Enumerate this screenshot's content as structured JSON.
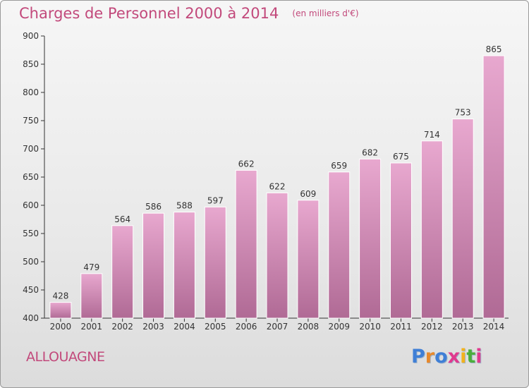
{
  "chart_data": {
    "type": "bar",
    "title": "Charges de Personnel 2000 à 2014",
    "subtitle": "(en milliers d'€)",
    "categories": [
      "2000",
      "2001",
      "2002",
      "2003",
      "2004",
      "2005",
      "2006",
      "2007",
      "2008",
      "2009",
      "2010",
      "2011",
      "2012",
      "2013",
      "2014"
    ],
    "values": [
      428,
      479,
      564,
      586,
      588,
      597,
      662,
      622,
      609,
      659,
      682,
      675,
      714,
      753,
      865
    ],
    "ylim": [
      400,
      900
    ],
    "yticks": [
      400,
      450,
      500,
      550,
      600,
      650,
      700,
      750,
      800,
      850,
      900
    ],
    "xlabel": "",
    "ylabel": "",
    "grid": false
  },
  "footer": {
    "town": "ALLOUAGNE",
    "logo": "Proxiti"
  },
  "colors": {
    "accent": "#c2497b",
    "bar_top": "#e8a8cf",
    "bar_bottom": "#b06a95",
    "axis": "#333333",
    "logo": [
      "#3f7fd6",
      "#e8892b",
      "#3f7fd6",
      "#e03a8e",
      "#f2b21d",
      "#4cae3c",
      "#e03a8e"
    ]
  }
}
